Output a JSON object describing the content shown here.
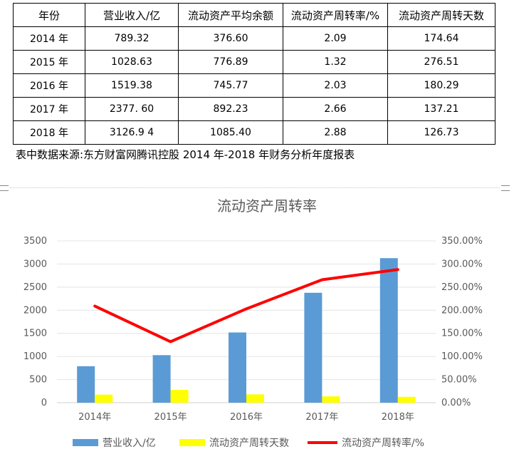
{
  "table": {
    "headers": [
      "年份",
      "营业收入/亿",
      "流动资产平均余额",
      "流动资产周转率/%",
      "流动资产周转天数"
    ],
    "rows": [
      [
        "2014 年",
        "789.32",
        "376.60",
        "2.09",
        "174.64"
      ],
      [
        "2015 年",
        "1028.63",
        "776.89",
        "1.32",
        "276.51"
      ],
      [
        "2016 年",
        "1519.38",
        "745.77",
        "2.03",
        "180.29"
      ],
      [
        "2017 年",
        "2377. 60",
        "892.23",
        "2.66",
        "137.21"
      ],
      [
        "2018  年",
        "3126.9 4",
        "1085.40",
        "2.88",
        "126.73"
      ]
    ]
  },
  "source_note": "表中数据来源:东方财富网腾讯控股 2014 年-2018 年财务分析年度报表",
  "chart_data": {
    "type": "bar",
    "title": "流动资产周转率",
    "categories": [
      "2014年",
      "2015年",
      "2016年",
      "2017年",
      "2018年"
    ],
    "series": [
      {
        "name": "营业收入/亿",
        "type": "bar",
        "axis": "left",
        "color": "#5b9bd5",
        "values": [
          789.32,
          1028.63,
          1519.38,
          2377.6,
          3126.94
        ]
      },
      {
        "name": "流动资产周转天数",
        "type": "bar",
        "axis": "left",
        "color": "#ffff00",
        "values": [
          174.64,
          276.51,
          180.29,
          137.21,
          126.73
        ]
      },
      {
        "name": "流动资产周转率/%",
        "type": "line",
        "axis": "right",
        "color": "#ff0000",
        "values": [
          209,
          132,
          203,
          266,
          288
        ]
      }
    ],
    "ylim_left": [
      0,
      3500
    ],
    "yticks_left": [
      "0",
      "500",
      "1000",
      "1500",
      "2000",
      "2500",
      "3000",
      "3500"
    ],
    "ylim_right": [
      0,
      350
    ],
    "yticks_right": [
      "0.00%",
      "50.00%",
      "100.00%",
      "150.00%",
      "200.00%",
      "250.00%",
      "300.00%",
      "350.00%"
    ],
    "grid": true,
    "legend_position": "bottom"
  }
}
